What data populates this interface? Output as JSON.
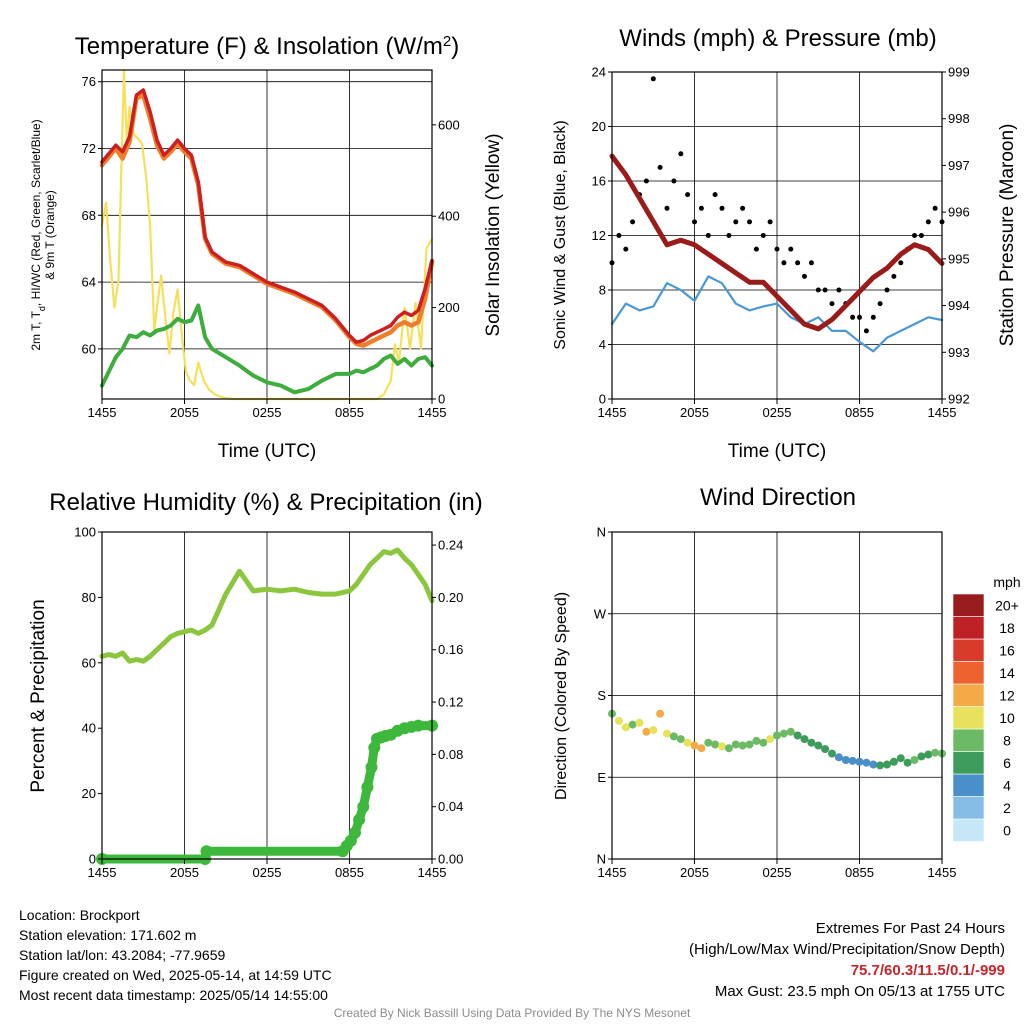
{
  "colors": {
    "temp_red": "#cc1f1f",
    "temp_orange": "#ef7d2a",
    "dewpoint_green": "#3dad3d",
    "solar_yellow": "#f5e05a",
    "wind_blue": "#4a98d4",
    "gust_black": "#000000",
    "pressure_maroon": "#9b1b1b",
    "rh_green": "#8cc63f",
    "precip_green": "#3db83d"
  },
  "chart_data": [
    {
      "id": "temperature",
      "type": "line",
      "title": "Temperature (F) & Insolation (W/m",
      "title_sup": "2",
      "title_close": ")",
      "xlabel": "Time (UTC)",
      "x_ticks": [
        "1455",
        "2055",
        "0255",
        "0855",
        "1455"
      ],
      "ylabel_left": [
        "2m T, T",
        "d",
        ", HI/WC (Red, Green, Scarlet/Blue)",
        "& 9m T (Orange)"
      ],
      "ylabel_right": "Solar Insolation (Yellow)",
      "y_left_ticks": [
        "60",
        "64",
        "68",
        "72",
        "76"
      ],
      "y_left_range": [
        57,
        76.7
      ],
      "y_right_ticks": [
        "0",
        "200",
        "400",
        "600"
      ],
      "y_right_range": [
        0,
        720
      ],
      "x_hours": [
        0,
        1,
        1.5,
        2,
        2.5,
        3,
        3.5,
        4,
        4.5,
        5,
        5.5,
        6,
        6.5,
        7,
        7.5,
        8,
        9,
        10,
        11,
        12,
        13,
        14,
        15,
        16,
        17,
        18,
        18.5,
        19,
        19.5,
        20,
        20.5,
        21,
        21.5,
        22,
        22.5,
        23,
        23.5,
        24
      ],
      "temperature_2m": [
        71.2,
        72.2,
        71.8,
        72.7,
        75.2,
        75.5,
        74.2,
        72.5,
        71.6,
        72.0,
        72.5,
        72.0,
        71.6,
        70.0,
        66.7,
        65.8,
        65.2,
        65.0,
        64.5,
        64.0,
        63.7,
        63.4,
        63.0,
        62.6,
        61.8,
        60.8,
        60.4,
        60.5,
        60.8,
        61.0,
        61.2,
        61.4,
        61.9,
        62.2,
        62.0,
        62.3,
        63.6,
        65.3
      ],
      "temperature_9m": [
        71.0,
        72.0,
        71.4,
        72.4,
        75.0,
        75.2,
        73.8,
        72.2,
        71.4,
        71.8,
        72.3,
        71.8,
        71.4,
        69.8,
        66.6,
        65.7,
        65.1,
        64.9,
        64.4,
        63.9,
        63.6,
        63.3,
        62.9,
        62.5,
        61.7,
        60.7,
        60.3,
        60.2,
        60.4,
        60.6,
        60.8,
        61.0,
        61.4,
        61.6,
        61.4,
        61.6,
        63.0,
        65.2
      ],
      "dewpoint": [
        57.8,
        59.5,
        60.0,
        60.8,
        60.7,
        61.0,
        60.8,
        61.1,
        61.2,
        61.4,
        61.8,
        61.6,
        61.7,
        62.6,
        60.7,
        60.0,
        59.5,
        59.0,
        58.4,
        58.0,
        57.8,
        57.4,
        57.6,
        58.1,
        58.5,
        58.5,
        58.7,
        58.6,
        58.8,
        59.0,
        59.4,
        59.6,
        59.1,
        59.4,
        59.0,
        59.4,
        59.5,
        59.0
      ],
      "solar_x_hours": [
        0,
        0.3,
        0.6,
        0.9,
        1.2,
        1.4,
        1.6,
        1.8,
        2.0,
        2.3,
        2.6,
        2.9,
        3.2,
        3.5,
        3.8,
        4.0,
        4.3,
        4.6,
        4.9,
        5.2,
        5.5,
        5.8,
        6.1,
        6.4,
        6.7,
        7.0,
        7.4,
        7.8,
        8.2,
        8.6,
        9.0,
        9.5,
        10,
        20,
        20.5,
        21,
        21.3,
        21.6,
        22.0,
        22.4,
        22.8,
        23.2,
        23.6,
        24
      ],
      "solar_insolation": [
        380,
        430,
        300,
        200,
        260,
        500,
        720,
        560,
        640,
        580,
        570,
        560,
        490,
        380,
        150,
        200,
        270,
        180,
        100,
        190,
        240,
        140,
        60,
        40,
        30,
        80,
        40,
        20,
        10,
        5,
        2,
        0,
        0,
        0,
        10,
        40,
        120,
        80,
        200,
        110,
        210,
        110,
        330,
        350
      ]
    },
    {
      "id": "winds",
      "type": "line",
      "title": "Winds (mph) & Pressure (mb)",
      "xlabel": "Time (UTC)",
      "x_ticks": [
        "1455",
        "2055",
        "0255",
        "0855",
        "1455"
      ],
      "ylabel_left": "Sonic Wind & Gust (Blue, Black)",
      "ylabel_right": "Station Pressure (Maroon)",
      "y_left_ticks": [
        "0",
        "4",
        "8",
        "12",
        "16",
        "20",
        "24"
      ],
      "y_left_range": [
        0,
        24
      ],
      "y_right_ticks": [
        "992",
        "993",
        "994",
        "995",
        "996",
        "997",
        "998",
        "999"
      ],
      "y_right_range": [
        992,
        999
      ],
      "x_hours": [
        0,
        1,
        2,
        3,
        4,
        5,
        6,
        7,
        8,
        9,
        10,
        11,
        12,
        13,
        14,
        15,
        16,
        17,
        18,
        19,
        20,
        21,
        22,
        23,
        24
      ],
      "wind_speed": [
        5.5,
        7.0,
        6.5,
        6.8,
        8.5,
        8.0,
        7.2,
        9.0,
        8.5,
        7.0,
        6.5,
        6.8,
        7.0,
        6.0,
        5.5,
        6.0,
        5.0,
        5.0,
        4.2,
        3.5,
        4.5,
        5.0,
        5.5,
        6.0,
        5.8
      ],
      "station_pressure": [
        997.2,
        996.8,
        996.3,
        995.8,
        995.3,
        995.4,
        995.3,
        995.1,
        994.9,
        994.7,
        994.5,
        994.5,
        994.2,
        993.9,
        993.6,
        993.5,
        993.7,
        994.0,
        994.3,
        994.6,
        994.8,
        995.1,
        995.3,
        995.2,
        994.9
      ],
      "gust_x_hours": [
        0,
        0.5,
        1,
        1.5,
        2,
        2.5,
        3,
        3.5,
        4,
        4.5,
        5,
        5.5,
        6,
        6.5,
        7,
        7.5,
        8,
        8.5,
        9,
        9.5,
        10,
        10.5,
        11,
        11.5,
        12,
        12.5,
        13,
        13.5,
        14,
        14.5,
        15,
        15.5,
        16,
        16.5,
        17,
        17.5,
        18,
        18.5,
        19,
        19.5,
        20,
        20.5,
        21,
        21.5,
        22,
        22.5,
        23,
        23.5,
        24
      ],
      "gust": [
        10,
        12,
        11,
        13,
        15,
        16,
        23.5,
        17,
        14,
        16,
        18,
        15,
        13,
        14,
        12,
        15,
        14,
        12,
        13,
        14,
        13,
        11,
        12,
        13,
        11,
        10,
        11,
        10,
        9,
        10,
        8,
        8,
        7,
        8,
        7,
        6,
        6,
        5,
        6,
        7,
        8,
        9,
        10,
        11,
        12,
        12,
        13,
        14,
        13
      ]
    },
    {
      "id": "humidity",
      "type": "line",
      "title": "Relative Humidity (%) & Precipitation (in)",
      "x_ticks": [
        "1455",
        "2055",
        "0255",
        "0855",
        "1455"
      ],
      "ylabel_left": "Percent & Precipitation",
      "y_left_ticks": [
        "0",
        "20",
        "40",
        "60",
        "80",
        "100"
      ],
      "y_left_range": [
        0,
        100
      ],
      "y_right_ticks": [
        "0.00",
        "0.04",
        "0.08",
        "0.12",
        "0.16",
        "0.20",
        "0.24"
      ],
      "y_right_range": [
        0,
        0.25
      ],
      "x_hours": [
        0,
        0.5,
        1,
        1.5,
        2,
        2.5,
        3,
        3.5,
        4,
        4.5,
        5,
        5.5,
        6,
        6.5,
        7,
        7.5,
        8,
        9,
        10,
        11,
        12,
        13,
        14,
        15,
        16,
        17,
        18,
        18.5,
        19,
        19.5,
        20,
        20.5,
        21,
        21.5,
        22,
        22.5,
        23,
        23.5,
        24
      ],
      "relative_humidity": [
        62,
        62.5,
        62,
        63,
        60.5,
        61,
        60.5,
        62,
        64,
        66,
        68,
        69,
        69.5,
        70,
        69,
        70,
        71.5,
        81,
        88,
        82,
        82.5,
        82,
        82.5,
        81.5,
        81,
        81,
        82,
        84,
        87,
        90,
        92,
        94,
        93.5,
        94.5,
        92,
        90,
        87,
        84,
        79
      ],
      "precip_x_hours": [
        0,
        7.5,
        7.6,
        17.5,
        17.8,
        18.1,
        18.4,
        18.7,
        19.0,
        19.3,
        19.6,
        19.8,
        20.0,
        20.3,
        20.6,
        21.0,
        21.5,
        22.0,
        22.5,
        23.0,
        24
      ],
      "precipitation": [
        0.0,
        0.0,
        0.006,
        0.006,
        0.01,
        0.014,
        0.02,
        0.03,
        0.04,
        0.055,
        0.07,
        0.085,
        0.092,
        0.093,
        0.094,
        0.095,
        0.098,
        0.1,
        0.101,
        0.102,
        0.102
      ]
    },
    {
      "id": "wind_direction",
      "type": "scatter",
      "title": "Wind Direction",
      "x_ticks": [
        "1455",
        "2055",
        "0255",
        "0855",
        "1455"
      ],
      "ylabel": "Direction (Colored By Speed)",
      "y_ticks": [
        "N",
        "E",
        "S",
        "W",
        "N"
      ],
      "y_range": [
        0,
        360
      ],
      "x_hours": [
        0,
        0.5,
        1,
        1.5,
        2,
        2.5,
        3,
        3.5,
        4,
        4.5,
        5,
        5.5,
        6,
        6.5,
        7,
        7.5,
        8,
        8.5,
        9,
        9.5,
        10,
        10.5,
        11,
        11.5,
        12,
        12.5,
        13,
        13.5,
        14,
        14.5,
        15,
        15.5,
        16,
        16.5,
        17,
        17.5,
        18,
        18.5,
        19,
        19.5,
        20,
        20.5,
        21,
        21.5,
        22,
        22.5,
        23,
        23.5,
        24
      ],
      "direction_deg": [
        160,
        152,
        145,
        148,
        150,
        140,
        142,
        160,
        138,
        135,
        132,
        128,
        125,
        122,
        128,
        126,
        124,
        122,
        126,
        125,
        126,
        130,
        128,
        132,
        136,
        138,
        140,
        136,
        132,
        128,
        125,
        121,
        116,
        112,
        109,
        108,
        107,
        106,
        104,
        103,
        104,
        107,
        111,
        106,
        109,
        113,
        115,
        117,
        116
      ],
      "speed_mph": [
        8,
        9,
        10,
        8,
        10,
        11,
        9,
        12,
        10,
        8,
        7,
        9,
        11,
        12,
        8,
        7,
        9,
        8,
        7,
        8,
        7,
        8,
        8,
        9,
        8,
        7,
        8,
        6,
        6,
        5,
        6,
        5,
        5,
        4,
        4,
        3,
        3,
        4,
        4,
        5,
        5,
        5,
        6,
        6,
        7,
        6,
        6,
        7,
        7
      ],
      "legend_unit": "mph",
      "legend_labels": [
        "0",
        "2",
        "4",
        "6",
        "8",
        "10",
        "12",
        "14",
        "16",
        "18",
        "20+"
      ],
      "legend_colors": [
        "#c6e7f7",
        "#85bde7",
        "#4a8fc9",
        "#3d9b5b",
        "#6cb966",
        "#e8e15c",
        "#f5aa48",
        "#ee6230",
        "#d93b2b",
        "#bf2026",
        "#981b1e"
      ]
    }
  ],
  "info": {
    "location": "Location: Brockport",
    "elevation": "Station elevation: 171.602 m",
    "latlon": "Station lat/lon: 43.2084; -77.9659",
    "created": "Figure created on Wed, 2025-05-14, at 14:59 UTC",
    "recent": "Most recent data timestamp: 2025/05/14 14:55:00"
  },
  "extremes": {
    "title": "Extremes For Past 24 Hours",
    "subtitle": "(High/Low/Max Wind/Precipitation/Snow Depth)",
    "values": "75.7/60.3/11.5/0.1/-999",
    "max_gust": "Max Gust: 23.5 mph On 05/13 at 1755 UTC"
  },
  "credit": "Created By Nick Bassill Using Data Provided By The NYS Mesonet"
}
